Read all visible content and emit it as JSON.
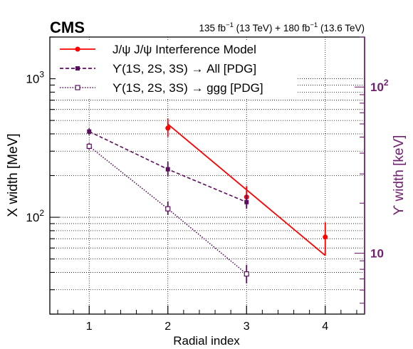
{
  "chart_data": {
    "type": "line",
    "experiment": "CMS",
    "luminosity": {
      "prefix": "135 fb",
      "prefix_exp": "−1",
      "mid": " (13 TeV) + 180 fb",
      "mid_exp": "−1",
      "suffix": " (13.6 TeV)"
    },
    "xlabel": "Radial index",
    "ylabel_left": "X width [MeV]",
    "ylabel_right": "ϒ width [keV]",
    "xlim": [
      0.5,
      4.5
    ],
    "ylim_left": [
      20,
      2000
    ],
    "ylim_right": [
      4.3,
      200
    ],
    "log_y": true,
    "grid": true,
    "x_ticks": [
      "1",
      "2",
      "3",
      "4"
    ],
    "y_left_ticks": [
      {
        "value": 100,
        "base": "10",
        "exp": "2"
      },
      {
        "value": 1000,
        "base": "10",
        "exp": "3"
      }
    ],
    "y_right_ticks": [
      {
        "value": 10,
        "label": "10"
      },
      {
        "value": 100,
        "base": "10",
        "exp": "2"
      }
    ],
    "colors": {
      "model": "#ff0000",
      "upsilon": "#5a0f5c",
      "right_axis": "#6e1f6e"
    },
    "legend_position": "top-left",
    "series": [
      {
        "name": "J/ψ J/ψ Interference Model",
        "axis": "left",
        "style": "solid",
        "marker": "filled-circle",
        "color": "#ff0000",
        "line_x": [
          2,
          4
        ],
        "line_y": [
          470,
          53
        ],
        "points": [
          {
            "x": 2,
            "y": 440,
            "err_lo": 380,
            "err_hi": 515
          },
          {
            "x": 3,
            "y": 140,
            "err_lo": 118,
            "err_hi": 168
          },
          {
            "x": 4,
            "y": 72,
            "err_lo": 53,
            "err_hi": 92
          }
        ]
      },
      {
        "name": "ϒ(1S, 2S, 3S) → All [PDG]",
        "axis": "right",
        "style": "dashed",
        "marker": "filled-square",
        "color": "#5a0f5c",
        "points": [
          {
            "x": 1,
            "y": 54,
            "err_lo": 51.5,
            "err_hi": 56.5
          },
          {
            "x": 2,
            "y": 32,
            "err_lo": 29,
            "err_hi": 35.5
          },
          {
            "x": 3,
            "y": 20.3,
            "err_lo": 18.5,
            "err_hi": 22.5
          }
        ]
      },
      {
        "name": "ϒ(1S, 2S, 3S) → ggg [PDG]",
        "axis": "right",
        "style": "dotted",
        "marker": "open-square",
        "color": "#5a0f5c",
        "points": [
          {
            "x": 1,
            "y": 44,
            "err_lo": 42,
            "err_hi": 46
          },
          {
            "x": 2,
            "y": 18.5,
            "err_lo": 17,
            "err_hi": 20.5
          },
          {
            "x": 3,
            "y": 7.5,
            "err_lo": 6.6,
            "err_hi": 8.5
          }
        ]
      }
    ]
  }
}
